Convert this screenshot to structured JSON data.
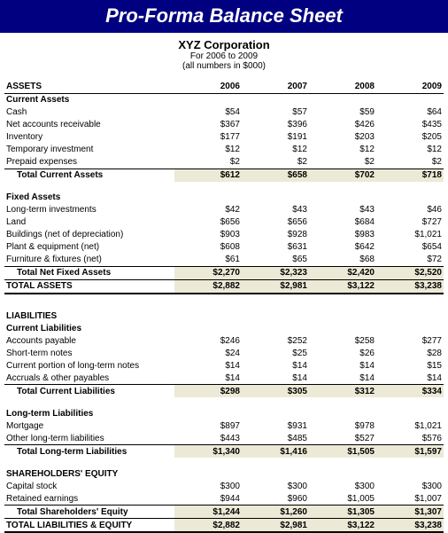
{
  "title": "Pro-Forma Balance Sheet",
  "company": "XYZ Corporation",
  "period": "For 2006 to 2009",
  "units": "(all numbers in $000)",
  "years": [
    "2006",
    "2007",
    "2008",
    "2009"
  ],
  "colors": {
    "title_bg": "#000080",
    "title_fg": "#ffffff",
    "total_bg": "#ecead6",
    "border": "#000000",
    "page_bg": "#ffffff"
  },
  "sections": {
    "assets": {
      "label": "ASSETS",
      "current": {
        "label": "Current Assets",
        "rows": [
          {
            "label": "Cash",
            "vals": [
              "$54",
              "$57",
              "$59",
              "$64"
            ]
          },
          {
            "label": "Net accounts receivable",
            "vals": [
              "$367",
              "$396",
              "$426",
              "$435"
            ]
          },
          {
            "label": "Inventory",
            "vals": [
              "$177",
              "$191",
              "$203",
              "$205"
            ]
          },
          {
            "label": "Temporary investment",
            "vals": [
              "$12",
              "$12",
              "$12",
              "$12"
            ]
          },
          {
            "label": "Prepaid expenses",
            "vals": [
              "$2",
              "$2",
              "$2",
              "$2"
            ]
          }
        ],
        "total": {
          "label": "Total Current Assets",
          "vals": [
            "$612",
            "$658",
            "$702",
            "$718"
          ]
        }
      },
      "fixed": {
        "label": "Fixed Assets",
        "rows": [
          {
            "label": "Long-term investments",
            "vals": [
              "$42",
              "$43",
              "$43",
              "$46"
            ]
          },
          {
            "label": "Land",
            "vals": [
              "$656",
              "$656",
              "$684",
              "$727"
            ]
          },
          {
            "label": "Buildings (net of depreciation)",
            "vals": [
              "$903",
              "$928",
              "$983",
              "$1,021"
            ]
          },
          {
            "label": "Plant & equipment (net)",
            "vals": [
              "$608",
              "$631",
              "$642",
              "$654"
            ]
          },
          {
            "label": "Furniture & fixtures (net)",
            "vals": [
              "$61",
              "$65",
              "$68",
              "$72"
            ]
          }
        ],
        "total": {
          "label": "Total Net Fixed Assets",
          "vals": [
            "$2,270",
            "$2,323",
            "$2,420",
            "$2,520"
          ]
        }
      },
      "grand": {
        "label": "TOTAL ASSETS",
        "vals": [
          "$2,882",
          "$2,981",
          "$3,122",
          "$3,238"
        ]
      }
    },
    "liabilities": {
      "label": "LIABILITIES",
      "current": {
        "label": "Current Liabilities",
        "rows": [
          {
            "label": "Accounts payable",
            "vals": [
              "$246",
              "$252",
              "$258",
              "$277"
            ]
          },
          {
            "label": "Short-term notes",
            "vals": [
              "$24",
              "$25",
              "$26",
              "$28"
            ]
          },
          {
            "label": "Current portion of long-term notes",
            "vals": [
              "$14",
              "$14",
              "$14",
              "$15"
            ]
          },
          {
            "label": "Accruals & other payables",
            "vals": [
              "$14",
              "$14",
              "$14",
              "$14"
            ]
          }
        ],
        "total": {
          "label": "Total Current Liabilities",
          "vals": [
            "$298",
            "$305",
            "$312",
            "$334"
          ]
        }
      },
      "longterm": {
        "label": "Long-term Liabilities",
        "rows": [
          {
            "label": "Mortgage",
            "vals": [
              "$897",
              "$931",
              "$978",
              "$1,021"
            ]
          },
          {
            "label": "Other long-term liabilities",
            "vals": [
              "$443",
              "$485",
              "$527",
              "$576"
            ]
          }
        ],
        "total": {
          "label": "Total Long-term Liabilities",
          "vals": [
            "$1,340",
            "$1,416",
            "$1,505",
            "$1,597"
          ]
        }
      }
    },
    "equity": {
      "label": "SHAREHOLDERS' EQUITY",
      "rows": [
        {
          "label": "Capital stock",
          "vals": [
            "$300",
            "$300",
            "$300",
            "$300"
          ]
        },
        {
          "label": "Retained earnings",
          "vals": [
            "$944",
            "$960",
            "$1,005",
            "$1,007"
          ]
        }
      ],
      "total": {
        "label": "Total Shareholders' Equity",
        "vals": [
          "$1,244",
          "$1,260",
          "$1,305",
          "$1,307"
        ]
      }
    },
    "grand_liab_eq": {
      "label": "TOTAL LIABILITIES & EQUITY",
      "vals": [
        "$2,882",
        "$2,981",
        "$3,122",
        "$3,238"
      ]
    }
  }
}
